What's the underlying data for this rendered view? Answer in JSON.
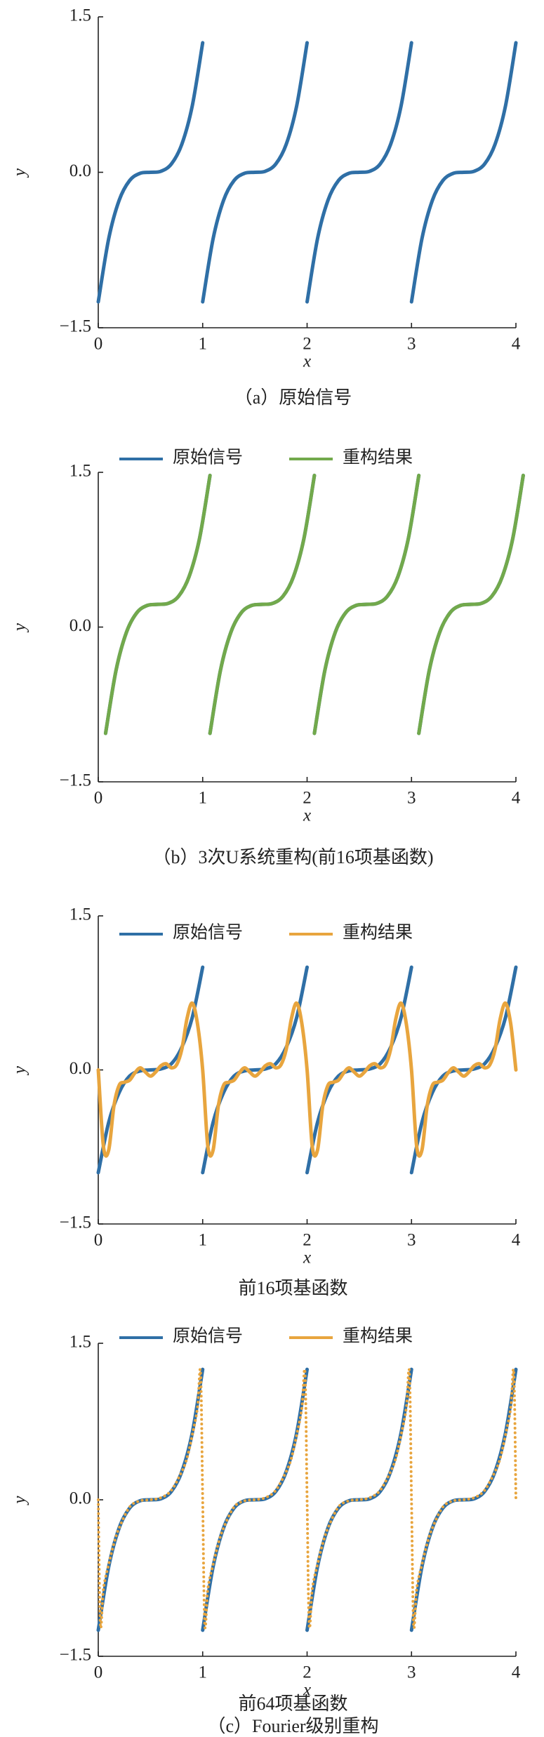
{
  "chart_data": [
    {
      "type": "line",
      "xlabel": "x",
      "ylabel": "y",
      "captions": [
        "（a）原始信号"
      ],
      "xlim": [
        0,
        4
      ],
      "ylim": [
        -1.5,
        1.5
      ],
      "xticks": [
        0,
        1,
        2,
        3,
        4
      ],
      "yticks": [
        {
          "value": -1.5,
          "label": "−1.5"
        },
        {
          "value": 0,
          "label": "0.0"
        },
        1.5
      ],
      "legend": false,
      "series": [
        {
          "color": "#2f6fa6",
          "style": "solid",
          "x": [
            0,
            0.1,
            0.2,
            0.3,
            0.4,
            0.5,
            0.6,
            0.7,
            0.8,
            0.9,
            1,
            1,
            1,
            1.1,
            1.2,
            1.3,
            1.4,
            1.5,
            1.6,
            1.7,
            1.8,
            1.9,
            2,
            2,
            2,
            2.1,
            2.2,
            2.3,
            2.4,
            2.5,
            2.6,
            2.7,
            2.8,
            2.9,
            3,
            3,
            3,
            3.1,
            3.2,
            3.3,
            3.4,
            3.5,
            3.6,
            3.7,
            3.8,
            3.9,
            4
          ],
          "values": [
            -1.25,
            -0.64,
            -0.27,
            -0.08,
            -0.01,
            0,
            0.01,
            0.08,
            0.27,
            0.64,
            1.25,
            null,
            -1.25,
            -0.64,
            -0.27,
            -0.08,
            -0.01,
            0,
            0.01,
            0.08,
            0.27,
            0.64,
            1.25,
            null,
            -1.25,
            -0.64,
            -0.27,
            -0.08,
            -0.01,
            0,
            0.01,
            0.08,
            0.27,
            0.64,
            1.25,
            null,
            -1.25,
            -0.64,
            -0.27,
            -0.08,
            -0.01,
            0,
            0.01,
            0.08,
            0.27,
            0.64,
            1.25
          ]
        }
      ]
    },
    {
      "type": "line",
      "xlabel": "x",
      "ylabel": "y",
      "captions": [
        "（b）3次U系统重构(前16项基函数)"
      ],
      "xlim": [
        0,
        4
      ],
      "ylim": [
        -1.5,
        1.5
      ],
      "xticks": [
        0,
        1,
        2,
        3,
        4
      ],
      "yticks": [
        {
          "value": -1.5,
          "label": "−1.5"
        },
        {
          "value": 0,
          "label": "0.0"
        },
        1.5
      ],
      "legend": true,
      "series": [
        {
          "name": "原始信号",
          "color": "#2f6fa6",
          "style": "solid",
          "x": [
            0.07,
            0.17,
            0.27,
            0.37,
            0.47,
            0.57,
            0.67,
            0.77,
            0.87,
            0.97,
            1.07,
            1.07,
            1.07,
            1.17,
            1.27,
            1.37,
            1.47,
            1.57,
            1.67,
            1.77,
            1.87,
            1.97,
            2.07,
            2.07,
            2.07,
            2.17,
            2.27,
            2.37,
            2.47,
            2.57,
            2.67,
            2.77,
            2.87,
            2.97,
            3.07,
            3.07,
            3.07,
            3.17,
            3.27,
            3.37,
            3.47,
            3.57,
            3.67,
            3.77,
            3.87,
            3.97,
            4.07
          ],
          "values": [
            -1.03,
            -0.42,
            -0.05,
            0.14,
            0.21,
            0.22,
            0.23,
            0.3,
            0.49,
            0.86,
            1.47,
            null,
            -1.03,
            -0.42,
            -0.05,
            0.14,
            0.21,
            0.22,
            0.23,
            0.3,
            0.49,
            0.86,
            1.47,
            null,
            -1.03,
            -0.42,
            -0.05,
            0.14,
            0.21,
            0.22,
            0.23,
            0.3,
            0.49,
            0.86,
            1.47,
            null,
            -1.03,
            -0.42,
            -0.05,
            0.14,
            0.21,
            0.22,
            0.23,
            0.3,
            0.49,
            0.86,
            1.47
          ]
        },
        {
          "name": "重构结果",
          "color": "#72a94c",
          "style": "solid",
          "x": [
            0.07,
            0.17,
            0.27,
            0.37,
            0.47,
            0.57,
            0.67,
            0.77,
            0.87,
            0.97,
            1.07,
            1.07,
            1.07,
            1.17,
            1.27,
            1.37,
            1.47,
            1.57,
            1.67,
            1.77,
            1.87,
            1.97,
            2.07,
            2.07,
            2.07,
            2.17,
            2.27,
            2.37,
            2.47,
            2.57,
            2.67,
            2.77,
            2.87,
            2.97,
            3.07,
            3.07,
            3.07,
            3.17,
            3.27,
            3.37,
            3.47,
            3.57,
            3.67,
            3.77,
            3.87,
            3.97,
            4.07
          ],
          "values": [
            -1.03,
            -0.42,
            -0.05,
            0.14,
            0.21,
            0.22,
            0.23,
            0.3,
            0.49,
            0.86,
            1.47,
            null,
            -1.03,
            -0.42,
            -0.05,
            0.14,
            0.21,
            0.22,
            0.23,
            0.3,
            0.49,
            0.86,
            1.47,
            null,
            -1.03,
            -0.42,
            -0.05,
            0.14,
            0.21,
            0.22,
            0.23,
            0.3,
            0.49,
            0.86,
            1.47,
            null,
            -1.03,
            -0.42,
            -0.05,
            0.14,
            0.21,
            0.22,
            0.23,
            0.3,
            0.49,
            0.86,
            1.47
          ]
        }
      ]
    },
    {
      "type": "line",
      "xlabel": "x",
      "ylabel": "y",
      "captions": [
        "前16项基函数"
      ],
      "xlim": [
        0,
        4
      ],
      "ylim": [
        -1.5,
        1.5
      ],
      "xticks": [
        0,
        1,
        2,
        3,
        4
      ],
      "yticks": [
        {
          "value": -1.5,
          "label": "−1.5"
        },
        {
          "value": 0,
          "label": "0.0"
        },
        1.5
      ],
      "legend": true,
      "series": [
        {
          "name": "原始信号",
          "color": "#2f6fa6",
          "style": "solid",
          "x": [
            0,
            0.1,
            0.2,
            0.3,
            0.4,
            0.5,
            0.6,
            0.7,
            0.8,
            0.9,
            1,
            1,
            1,
            1.1,
            1.2,
            1.3,
            1.4,
            1.5,
            1.6,
            1.7,
            1.8,
            1.9,
            2,
            2,
            2,
            2.1,
            2.2,
            2.3,
            2.4,
            2.5,
            2.6,
            2.7,
            2.8,
            2.9,
            3,
            3,
            3,
            3.1,
            3.2,
            3.3,
            3.4,
            3.5,
            3.6,
            3.7,
            3.8,
            3.9,
            4
          ],
          "values": [
            -1,
            -0.51,
            -0.22,
            -0.06,
            -0.01,
            0,
            0.01,
            0.06,
            0.22,
            0.51,
            1,
            null,
            -1,
            -0.51,
            -0.22,
            -0.06,
            -0.01,
            0,
            0.01,
            0.06,
            0.22,
            0.51,
            1,
            null,
            -1,
            -0.51,
            -0.22,
            -0.06,
            -0.01,
            0,
            0.01,
            0.06,
            0.22,
            0.51,
            1,
            null,
            -1,
            -0.51,
            -0.22,
            -0.06,
            -0.01,
            0,
            0.01,
            0.06,
            0.22,
            0.51,
            1
          ]
        },
        {
          "name": "重构结果",
          "color": "#e8a53e",
          "style": "solid",
          "x": [
            0,
            0.05,
            0.1,
            0.15,
            0.2,
            0.25,
            0.3,
            0.35,
            0.4,
            0.45,
            0.5,
            0.55,
            0.6,
            0.65,
            0.7,
            0.75,
            0.8,
            0.85,
            0.9,
            0.95,
            1,
            1.05,
            1.1,
            1.15,
            1.2,
            1.25,
            1.3,
            1.35,
            1.4,
            1.45,
            1.5,
            1.55,
            1.6,
            1.65,
            1.7,
            1.75,
            1.8,
            1.85,
            1.9,
            1.95,
            2,
            2.05,
            2.1,
            2.15,
            2.2,
            2.25,
            2.3,
            2.35,
            2.4,
            2.45,
            2.5,
            2.55,
            2.6,
            2.65,
            2.7,
            2.75,
            2.8,
            2.85,
            2.9,
            2.95,
            3,
            3.05,
            3.1,
            3.15,
            3.2,
            3.25,
            3.3,
            3.35,
            3.4,
            3.45,
            3.5,
            3.55,
            3.6,
            3.65,
            3.7,
            3.75,
            3.8,
            3.85,
            3.9,
            3.95,
            4
          ],
          "values": [
            0,
            -0.75,
            -0.78,
            -0.35,
            -0.15,
            -0.12,
            -0.1,
            -0.03,
            0.02,
            -0.02,
            -0.06,
            -0.02,
            0.04,
            0.06,
            0.02,
            0.05,
            0.2,
            0.5,
            0.65,
            0.45,
            0,
            -0.75,
            -0.78,
            -0.35,
            -0.15,
            -0.12,
            -0.1,
            -0.03,
            0.02,
            -0.02,
            -0.06,
            -0.02,
            0.04,
            0.06,
            0.02,
            0.05,
            0.2,
            0.5,
            0.65,
            0.45,
            0,
            -0.75,
            -0.78,
            -0.35,
            -0.15,
            -0.12,
            -0.1,
            -0.03,
            0.02,
            -0.02,
            -0.06,
            -0.02,
            0.04,
            0.06,
            0.02,
            0.05,
            0.2,
            0.5,
            0.65,
            0.45,
            0,
            -0.75,
            -0.78,
            -0.35,
            -0.15,
            -0.12,
            -0.1,
            -0.03,
            0.02,
            -0.02,
            -0.06,
            -0.02,
            0.04,
            0.06,
            0.02,
            0.05,
            0.2,
            0.5,
            0.65,
            0.45,
            0
          ]
        }
      ]
    },
    {
      "type": "line",
      "xlabel": "x",
      "ylabel": "y",
      "captions": [
        "前64项基函数",
        "（c）Fourier级别重构"
      ],
      "xlim": [
        0,
        4
      ],
      "ylim": [
        -1.5,
        1.5
      ],
      "xticks": [
        0,
        1,
        2,
        3,
        4
      ],
      "yticks": [
        {
          "value": -1.5,
          "label": "−1.5"
        },
        {
          "value": 0,
          "label": "0.0"
        },
        1.5
      ],
      "legend": true,
      "series": [
        {
          "name": "原始信号",
          "color": "#2f6fa6",
          "style": "solid",
          "x": [
            0,
            0.1,
            0.2,
            0.3,
            0.4,
            0.5,
            0.6,
            0.7,
            0.8,
            0.9,
            1,
            1,
            1,
            1.1,
            1.2,
            1.3,
            1.4,
            1.5,
            1.6,
            1.7,
            1.8,
            1.9,
            2,
            2,
            2,
            2.1,
            2.2,
            2.3,
            2.4,
            2.5,
            2.6,
            2.7,
            2.8,
            2.9,
            3,
            3,
            3,
            3.1,
            3.2,
            3.3,
            3.4,
            3.5,
            3.6,
            3.7,
            3.8,
            3.9,
            4
          ],
          "values": [
            -1.25,
            -0.64,
            -0.27,
            -0.08,
            -0.01,
            0,
            0.01,
            0.08,
            0.27,
            0.64,
            1.25,
            null,
            -1.25,
            -0.64,
            -0.27,
            -0.08,
            -0.01,
            0,
            0.01,
            0.08,
            0.27,
            0.64,
            1.25,
            null,
            -1.25,
            -0.64,
            -0.27,
            -0.08,
            -0.01,
            0,
            0.01,
            0.08,
            0.27,
            0.64,
            1.25,
            null,
            -1.25,
            -0.64,
            -0.27,
            -0.08,
            -0.01,
            0,
            0.01,
            0.08,
            0.27,
            0.64,
            1.25
          ]
        },
        {
          "name": "重构结果",
          "color": "#e8a53e",
          "style": "dotted",
          "x": [
            0,
            0.02,
            0.05,
            0.1,
            0.15,
            0.2,
            0.3,
            0.4,
            0.5,
            0.6,
            0.7,
            0.8,
            0.85,
            0.9,
            0.95,
            0.98,
            1,
            1.02,
            1.05,
            1.1,
            1.15,
            1.2,
            1.3,
            1.4,
            1.5,
            1.6,
            1.7,
            1.8,
            1.85,
            1.9,
            1.95,
            1.98,
            2,
            2.02,
            2.05,
            2.1,
            2.15,
            2.2,
            2.3,
            2.4,
            2.5,
            2.6,
            2.7,
            2.8,
            2.85,
            2.9,
            2.95,
            2.98,
            3,
            3.02,
            3.05,
            3.1,
            3.15,
            3.2,
            3.3,
            3.4,
            3.5,
            3.6,
            3.7,
            3.8,
            3.85,
            3.9,
            3.95,
            3.98,
            4
          ],
          "values": [
            0,
            -1.2,
            -0.85,
            -0.62,
            -0.42,
            -0.27,
            -0.07,
            -0.01,
            0,
            0.02,
            0.09,
            0.27,
            0.4,
            0.62,
            0.88,
            1.22,
            0,
            -1.2,
            -0.85,
            -0.62,
            -0.42,
            -0.27,
            -0.07,
            -0.01,
            0,
            0.02,
            0.09,
            0.27,
            0.4,
            0.62,
            0.88,
            1.22,
            0,
            -1.2,
            -0.85,
            -0.62,
            -0.42,
            -0.27,
            -0.07,
            -0.01,
            0,
            0.02,
            0.09,
            0.27,
            0.4,
            0.62,
            0.88,
            1.22,
            0,
            -1.2,
            -0.85,
            -0.62,
            -0.42,
            -0.27,
            -0.07,
            -0.01,
            0,
            0.02,
            0.09,
            0.27,
            0.4,
            0.62,
            0.88,
            1.22,
            0
          ]
        }
      ]
    }
  ]
}
